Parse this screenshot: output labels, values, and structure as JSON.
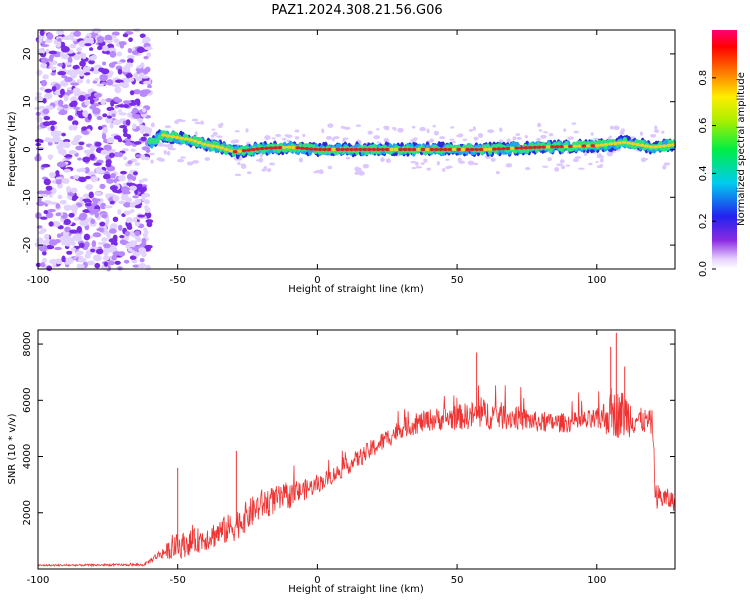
{
  "title": "PAZ1.2024.308.21.56.G06",
  "colors": {
    "snr_line": "#ee3333",
    "ridge": "#e02020",
    "noise": "#7a2be6"
  },
  "chart_data": [
    {
      "type": "heatmap",
      "name": "spectrogram",
      "xlabel": "Height of straight line (km)",
      "ylabel": "Frequency (Hz)",
      "xlim": [
        -100,
        128
      ],
      "ylim": [
        -25,
        25
      ],
      "xticks": [
        -100,
        -50,
        0,
        50,
        100
      ],
      "yticks": [
        -20,
        -10,
        0,
        10,
        20
      ],
      "colorbar": {
        "label": "Normalized spectral amplitude",
        "range": [
          0,
          1
        ],
        "ticks": [
          0.0,
          0.2,
          0.4,
          0.6,
          0.8
        ]
      },
      "features": {
        "noise_region_x": [
          -100,
          -60
        ],
        "ridge": [
          {
            "x": -60,
            "y": 1.5
          },
          {
            "x": -55,
            "y": 3.0
          },
          {
            "x": -50,
            "y": 2.5
          },
          {
            "x": -45,
            "y": 2.0
          },
          {
            "x": -40,
            "y": 1.0
          },
          {
            "x": -35,
            "y": 0.5
          },
          {
            "x": -30,
            "y": -0.5
          },
          {
            "x": -20,
            "y": 0.2
          },
          {
            "x": -10,
            "y": 0.5
          },
          {
            "x": 0,
            "y": 0.0
          },
          {
            "x": 20,
            "y": 0.0
          },
          {
            "x": 40,
            "y": 0.0
          },
          {
            "x": 60,
            "y": 0.0
          },
          {
            "x": 80,
            "y": 0.5
          },
          {
            "x": 100,
            "y": 0.8
          },
          {
            "x": 110,
            "y": 1.5
          },
          {
            "x": 120,
            "y": 0.5
          },
          {
            "x": 128,
            "y": 1.0
          }
        ]
      }
    },
    {
      "type": "line",
      "name": "snr",
      "xlabel": "Height of straight line (km)",
      "ylabel": "SNR (10 * v/v)",
      "xlim": [
        -100,
        128
      ],
      "ylim": [
        0,
        8500
      ],
      "xticks": [
        -100,
        -50,
        0,
        50,
        100
      ],
      "yticks": [
        2000,
        4000,
        6000,
        8000
      ],
      "envelope": [
        {
          "x": -100,
          "mean": 130,
          "spread": 60
        },
        {
          "x": -62,
          "mean": 150,
          "spread": 80
        },
        {
          "x": -57,
          "mean": 500,
          "spread": 300
        },
        {
          "x": -50,
          "mean": 800,
          "spread": 900
        },
        {
          "x": -40,
          "mean": 1100,
          "spread": 900
        },
        {
          "x": -30,
          "mean": 1500,
          "spread": 1100
        },
        {
          "x": -20,
          "mean": 2300,
          "spread": 1100
        },
        {
          "x": -10,
          "mean": 2600,
          "spread": 900
        },
        {
          "x": 0,
          "mean": 3000,
          "spread": 600
        },
        {
          "x": 10,
          "mean": 3600,
          "spread": 600
        },
        {
          "x": 20,
          "mean": 4300,
          "spread": 700
        },
        {
          "x": 30,
          "mean": 5000,
          "spread": 700
        },
        {
          "x": 40,
          "mean": 5300,
          "spread": 800
        },
        {
          "x": 50,
          "mean": 5400,
          "spread": 900
        },
        {
          "x": 60,
          "mean": 5500,
          "spread": 1100
        },
        {
          "x": 70,
          "mean": 5400,
          "spread": 900
        },
        {
          "x": 80,
          "mean": 5200,
          "spread": 700
        },
        {
          "x": 90,
          "mean": 5200,
          "spread": 700
        },
        {
          "x": 100,
          "mean": 5300,
          "spread": 800
        },
        {
          "x": 105,
          "mean": 5500,
          "spread": 1600
        },
        {
          "x": 110,
          "mean": 5500,
          "spread": 1800
        },
        {
          "x": 115,
          "mean": 5300,
          "spread": 900
        },
        {
          "x": 120,
          "mean": 5200,
          "spread": 900
        },
        {
          "x": 121,
          "mean": 2600,
          "spread": 900
        },
        {
          "x": 128,
          "mean": 2400,
          "spread": 700
        }
      ],
      "spikes": [
        {
          "x": -50,
          "y": 3600
        },
        {
          "x": -29,
          "y": 4200
        },
        {
          "x": 57,
          "y": 7700
        },
        {
          "x": 105,
          "y": 7900
        },
        {
          "x": 107,
          "y": 8400
        },
        {
          "x": 110,
          "y": 7200
        }
      ]
    }
  ]
}
